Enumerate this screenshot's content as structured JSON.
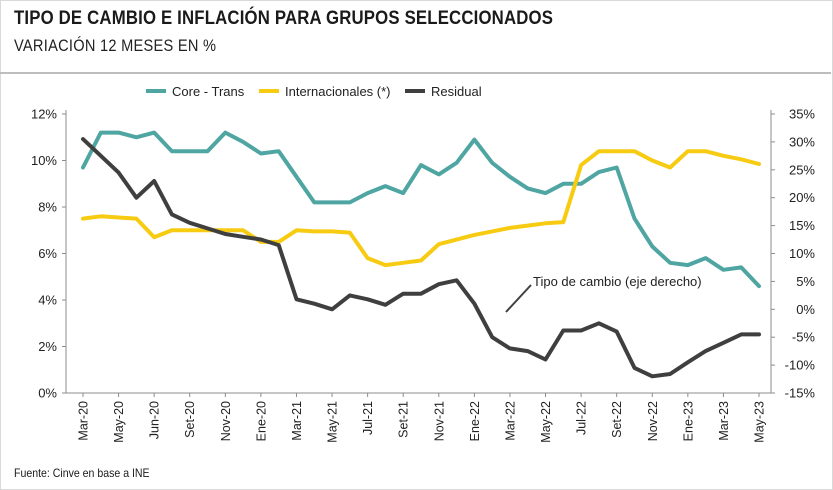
{
  "header": {
    "title": "TIPO DE CAMBIO E INFLACIÓN PARA GRUPOS SELECCIONADOS",
    "subtitle": "VARIACIÓN 12 MESES EN %"
  },
  "footer": {
    "source": "Fuente: Cinve en base a INE"
  },
  "colors": {
    "core": "#4ea5a1",
    "internacionales": "#f7cb12",
    "residual": "#3f3f3f",
    "axis": "#8c8c8c"
  },
  "chart_data": {
    "type": "line",
    "months": [
      "Mar-20",
      "Apr-20",
      "May-20",
      "Jun-20",
      "Jul-20",
      "Aug-20",
      "Sep-20",
      "Oct-20",
      "Nov-20",
      "Dec-20",
      "Jan-21",
      "Feb-21",
      "Mar-21",
      "Apr-21",
      "May-21",
      "Jun-21",
      "Jul-21",
      "Aug-21",
      "Sep-21",
      "Oct-21",
      "Nov-21",
      "Dec-21",
      "Jan-22",
      "Feb-22",
      "Mar-22",
      "Apr-22",
      "May-22",
      "Jun-22",
      "Jul-22",
      "Aug-22",
      "Sep-22",
      "Oct-22",
      "Nov-22",
      "Dec-22",
      "Jan-23",
      "Feb-23",
      "Mar-23",
      "Apr-23",
      "May-23"
    ],
    "x_tick_labels": [
      "Mar-20",
      "May-20",
      "Jun-20",
      "Set-20",
      "Nov-20",
      "Ene-20",
      "Mar-21",
      "May-21",
      "Jul-21",
      "Set-21",
      "Nov-21",
      "Ene-22",
      "Mar-22",
      "May-22",
      "Jul-22",
      "Set-22",
      "Nov-22",
      "Ene-23",
      "Mar-23",
      "May-23"
    ],
    "left_axis": {
      "ticks": [
        "0%",
        "2%",
        "4%",
        "6%",
        "8%",
        "10%",
        "12%"
      ],
      "ylim": [
        0,
        12
      ]
    },
    "right_axis": {
      "ticks": [
        "-15%",
        "-10%",
        "-5%",
        "0%",
        "5%",
        "10%",
        "15%",
        "20%",
        "25%",
        "30%",
        "35%"
      ],
      "ylim": [
        -15,
        35
      ]
    },
    "series": [
      {
        "name": "Core - Trans",
        "axis": "left",
        "color": "#4ea5a1",
        "values": [
          9.7,
          11.2,
          11.2,
          11.0,
          11.2,
          10.4,
          10.4,
          10.4,
          11.2,
          10.8,
          10.3,
          10.4,
          9.3,
          8.2,
          8.2,
          8.2,
          8.6,
          8.9,
          8.6,
          9.8,
          9.4,
          9.9,
          10.9,
          9.9,
          9.3,
          8.8,
          8.6,
          9.0,
          9.0,
          9.5,
          9.7,
          7.5,
          6.3,
          5.6,
          5.5,
          5.8,
          5.3,
          5.4,
          4.6
        ]
      },
      {
        "name": "Internacionales (*)",
        "axis": "left",
        "color": "#f7cb12",
        "values": [
          7.5,
          7.6,
          7.55,
          7.5,
          6.7,
          7.0,
          7.0,
          7.0,
          7.0,
          7.0,
          6.5,
          6.5,
          7.0,
          6.95,
          6.95,
          6.9,
          5.8,
          5.5,
          5.6,
          5.7,
          6.4,
          6.6,
          6.8,
          6.95,
          7.1,
          7.2,
          7.3,
          7.35,
          9.8,
          10.4,
          10.4,
          10.4,
          10.0,
          9.7,
          10.4,
          10.4,
          10.2,
          10.05,
          9.85
        ]
      },
      {
        "name": "Residual",
        "axis": "right",
        "color": "#3f3f3f",
        "values": [
          30.5,
          27.5,
          24.5,
          20.0,
          23.0,
          17.0,
          15.5,
          14.5,
          13.5,
          13.0,
          12.5,
          11.5,
          1.8,
          1.0,
          0.0,
          2.5,
          1.8,
          0.8,
          2.8,
          2.8,
          4.5,
          5.2,
          1.0,
          -5.0,
          -7.0,
          -7.5,
          -9.0,
          -3.8,
          -3.8,
          -2.5,
          -4.0,
          -10.5,
          -12.0,
          -11.6,
          -9.5,
          -7.5,
          -6.0,
          -4.5,
          -4.5
        ]
      }
    ],
    "legend": [
      "Core - Trans",
      "Internacionales (*)",
      "Residual"
    ],
    "legend_position": "top",
    "annotation": {
      "text": "Tipo de cambio (eje derecho)",
      "target_series": "Residual"
    },
    "grid": false
  }
}
